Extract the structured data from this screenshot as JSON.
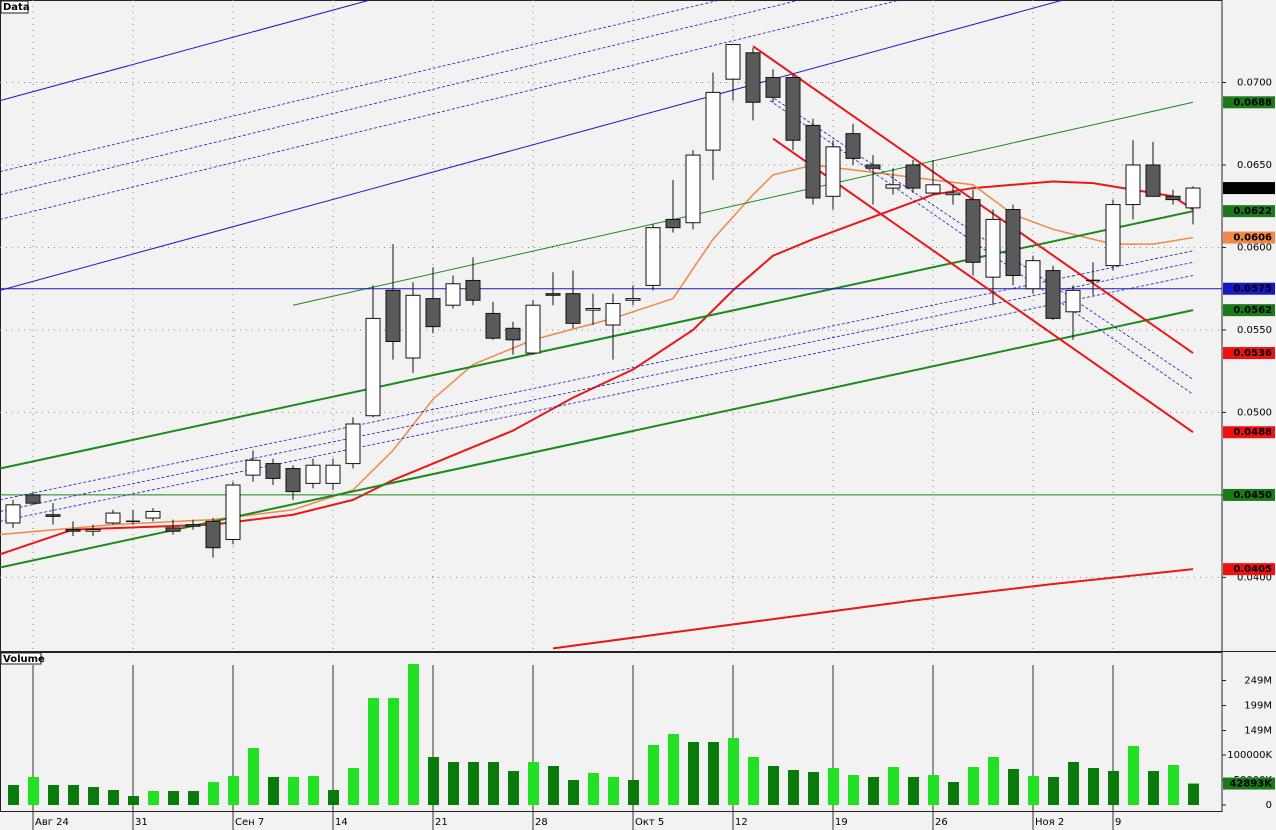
{
  "chart_data": [
    {
      "type": "candlestick",
      "title": "Data",
      "open": [
        0.0433,
        0.045,
        0.0438,
        0.0429,
        0.0428,
        0.0433,
        0.0434,
        0.0436,
        0.043,
        0.0432,
        0.0434,
        0.0423,
        0.0462,
        0.0469,
        0.0466,
        0.0457,
        0.0457,
        0.0469,
        0.0498,
        0.0574,
        0.0533,
        0.0569,
        0.0565,
        0.058,
        0.056,
        0.0551,
        0.0536,
        0.0572,
        0.0572,
        0.0562,
        0.0553,
        0.0568,
        0.0577,
        0.0617,
        0.0615,
        0.0659,
        0.0702,
        0.0718,
        0.0703,
        0.0703,
        0.0674,
        0.0631,
        0.0669,
        0.065,
        0.0636,
        0.065,
        0.0633,
        0.0632,
        0.0629,
        0.0582,
        0.0623,
        0.0575,
        0.0586,
        0.0561,
        0.058,
        0.0589,
        0.0626,
        0.065,
        0.0631,
        0.0624
      ],
      "high": [
        0.0447,
        0.0452,
        0.0445,
        0.0434,
        0.0432,
        0.0441,
        0.0441,
        0.0442,
        0.0435,
        0.0435,
        0.0436,
        0.0458,
        0.0477,
        0.0472,
        0.0468,
        0.0472,
        0.0472,
        0.0497,
        0.0577,
        0.0602,
        0.0579,
        0.0588,
        0.0583,
        0.0594,
        0.0567,
        0.0555,
        0.0568,
        0.0585,
        0.0586,
        0.0572,
        0.0572,
        0.0577,
        0.0614,
        0.0641,
        0.0659,
        0.0706,
        0.0723,
        0.0721,
        0.0708,
        0.0705,
        0.0678,
        0.0665,
        0.0675,
        0.0656,
        0.0648,
        0.0653,
        0.0653,
        0.0638,
        0.0635,
        0.0623,
        0.0626,
        0.0595,
        0.0589,
        0.0577,
        0.0591,
        0.0629,
        0.0665,
        0.0664,
        0.0635,
        0.0637
      ],
      "low": [
        0.043,
        0.0444,
        0.0432,
        0.0425,
        0.0425,
        0.0432,
        0.0432,
        0.0434,
        0.0426,
        0.0429,
        0.0412,
        0.042,
        0.0458,
        0.0456,
        0.0447,
        0.0454,
        0.0453,
        0.0466,
        0.0497,
        0.0532,
        0.0524,
        0.0548,
        0.0563,
        0.0565,
        0.0544,
        0.0535,
        0.0535,
        0.0565,
        0.0551,
        0.0553,
        0.0532,
        0.0565,
        0.0574,
        0.0609,
        0.0611,
        0.0641,
        0.0689,
        0.0677,
        0.0688,
        0.0659,
        0.0626,
        0.0623,
        0.065,
        0.0626,
        0.0632,
        0.0633,
        0.0632,
        0.0626,
        0.0583,
        0.0565,
        0.0577,
        0.0572,
        0.0556,
        0.0544,
        0.0571,
        0.0586,
        0.0617,
        0.0631,
        0.0626,
        0.0614
      ],
      "close": [
        0.0444,
        0.0445,
        0.0437,
        0.0428,
        0.0429,
        0.0439,
        0.0434,
        0.044,
        0.0428,
        0.0431,
        0.0418,
        0.0456,
        0.0471,
        0.046,
        0.0452,
        0.0468,
        0.0468,
        0.0493,
        0.0557,
        0.0543,
        0.0571,
        0.0552,
        0.0578,
        0.0568,
        0.0545,
        0.0544,
        0.0565,
        0.0571,
        0.0554,
        0.0563,
        0.0566,
        0.0569,
        0.0612,
        0.0612,
        0.0656,
        0.0694,
        0.0723,
        0.0688,
        0.0691,
        0.0665,
        0.063,
        0.0661,
        0.0654,
        0.0648,
        0.0638,
        0.0636,
        0.0638,
        0.0633,
        0.0591,
        0.0617,
        0.0583,
        0.0592,
        0.0557,
        0.0574,
        0.058,
        0.0626,
        0.065,
        0.0631,
        0.0629,
        0.0636
      ],
      "up_color": "#ffffff",
      "down_color": "#5a5a5a",
      "ylim": [
        0.0356,
        0.075
      ],
      "yticks": [
        {
          "value": 0.04,
          "label": "0.0400"
        },
        {
          "value": 0.045,
          "label": "0.0450"
        },
        {
          "value": 0.05,
          "label": "0.0500"
        },
        {
          "value": 0.055,
          "label": "0.0550"
        },
        {
          "value": 0.06,
          "label": "0.0600"
        },
        {
          "value": 0.065,
          "label": "0.0650"
        },
        {
          "value": 0.07,
          "label": "0.0700"
        }
      ],
      "grid": true,
      "lines": [
        {
          "color": "#e81818",
          "style": "thick",
          "x": [
            -0.65,
            3,
            10,
            14,
            17,
            19,
            22,
            25,
            28,
            31,
            34,
            36,
            38,
            40,
            42,
            44,
            46,
            48,
            50,
            52,
            54,
            56,
            58,
            59
          ],
          "values": [
            0.0414,
            0.0429,
            0.0432,
            0.0438,
            0.0447,
            0.0459,
            0.0474,
            0.0489,
            0.0509,
            0.0526,
            0.055,
            0.0574,
            0.0595,
            0.0605,
            0.0614,
            0.0623,
            0.0632,
            0.0636,
            0.0638,
            0.064,
            0.0639,
            0.0635,
            0.0631,
            0.0623
          ]
        },
        {
          "color": "#f08848",
          "style": "medium",
          "x": [
            -0.65,
            5,
            10,
            14,
            17,
            19,
            21,
            23,
            26,
            30,
            33,
            35,
            37,
            38,
            40,
            42,
            44,
            46,
            48,
            50,
            52,
            54,
            55,
            57,
            59
          ],
          "values": [
            0.0426,
            0.0432,
            0.0435,
            0.0441,
            0.0453,
            0.0477,
            0.0508,
            0.0529,
            0.0544,
            0.0557,
            0.0569,
            0.0605,
            0.0632,
            0.0644,
            0.065,
            0.0647,
            0.0644,
            0.0641,
            0.0638,
            0.062,
            0.0611,
            0.0605,
            0.0602,
            0.0602,
            0.0606
          ]
        },
        {
          "color": "#e81818",
          "style": "thick",
          "x": [
            27,
            45,
            52,
            59
          ],
          "values": [
            0.0357,
            0.0386,
            0.0396,
            0.0405
          ]
        },
        {
          "color": "#1a8a1a",
          "style": "thick",
          "x": [
            -0.65,
            59
          ],
          "values": [
            0.0466,
            0.0622
          ]
        },
        {
          "color": "#1a8a1a",
          "style": "thick",
          "x": [
            -0.65,
            59
          ],
          "values": [
            0.0406,
            0.0562
          ]
        },
        {
          "color": "#1a8a1a",
          "style": "thin",
          "x": [
            14,
            59
          ],
          "values": [
            0.0565,
            0.0688
          ]
        },
        {
          "color": "#1a8a1a",
          "style": "thin",
          "x": [
            -0.65,
            60.45
          ],
          "values": [
            0.045,
            0.045
          ]
        },
        {
          "color": "#1818c0",
          "style": "thin",
          "x": [
            -0.65,
            60.45
          ],
          "values": [
            0.0575,
            0.0575
          ]
        },
        {
          "color": "#1818c0",
          "style": "thin",
          "x": [
            -0.65,
            17.85
          ],
          "values": [
            0.0689,
            0.075
          ]
        },
        {
          "color": "#1818c0",
          "style": "thin",
          "x": [
            -0.65,
            52.5
          ],
          "values": [
            0.0574,
            0.075
          ]
        },
        {
          "color": "#1818c0",
          "style": "dashed",
          "x": [
            -0.65,
            35.35
          ],
          "values": [
            0.0646,
            0.075
          ]
        },
        {
          "color": "#1818c0",
          "style": "dashed",
          "x": [
            -0.65,
            39.35
          ],
          "values": [
            0.0632,
            0.075
          ]
        },
        {
          "color": "#1818c0",
          "style": "dashed",
          "x": [
            -0.65,
            44.35
          ],
          "values": [
            0.0617,
            0.075
          ]
        },
        {
          "color": "#1818c0",
          "style": "dashed",
          "x": [
            -0.65,
            59
          ],
          "values": [
            0.0447,
            0.0598
          ]
        },
        {
          "color": "#1818c0",
          "style": "dashed",
          "x": [
            -0.65,
            59
          ],
          "values": [
            0.044,
            0.0591
          ]
        },
        {
          "color": "#1818c0",
          "style": "dashed",
          "x": [
            -0.65,
            59
          ],
          "values": [
            0.0434,
            0.0583
          ]
        },
        {
          "color": "#1818c0",
          "style": "dashed",
          "x": [
            37.85,
            59
          ],
          "values": [
            0.0692,
            0.052
          ]
        },
        {
          "color": "#1818c0",
          "style": "dashed",
          "x": [
            37.85,
            59
          ],
          "values": [
            0.0689,
            0.0511
          ]
        },
        {
          "color": "#e81818",
          "style": "thick",
          "x": [
            37,
            59
          ],
          "values": [
            0.0722,
            0.0536
          ]
        },
        {
          "color": "#e81818",
          "style": "thick",
          "x": [
            38,
            59
          ],
          "values": [
            0.0666,
            0.0488
          ]
        }
      ],
      "markers": [
        {
          "value": 0.0688,
          "label": "0.0688",
          "color": "#1a7a1a"
        },
        {
          "value": 0.0636,
          "label": "0.0636",
          "color": "#000000"
        },
        {
          "value": 0.0622,
          "label": "0.0622",
          "color": "#1a7a1a"
        },
        {
          "value": 0.0606,
          "label": "0.0606",
          "color": "#f08848"
        },
        {
          "value": 0.0575,
          "label": "0.0575",
          "color": "#1818c0"
        },
        {
          "value": 0.0562,
          "label": "0.0562",
          "color": "#1a7a1a"
        },
        {
          "value": 0.0536,
          "label": "0.0536",
          "color": "#f01010"
        },
        {
          "value": 0.0488,
          "label": "0.0488",
          "color": "#f01010"
        },
        {
          "value": 0.045,
          "label": "0.0450",
          "color": "#1a7a1a"
        },
        {
          "value": 0.0405,
          "label": "0.0405",
          "color": "#f01010"
        }
      ]
    },
    {
      "type": "bar",
      "title": "Volume",
      "categories": [
        null,
        "Авг 24",
        null,
        null,
        null,
        null,
        "31",
        null,
        null,
        null,
        null,
        "Сен 7",
        null,
        null,
        null,
        null,
        "14",
        null,
        null,
        null,
        null,
        "21",
        null,
        null,
        null,
        null,
        "28",
        null,
        null,
        null,
        null,
        "Окт 5",
        null,
        null,
        null,
        null,
        "12",
        null,
        null,
        null,
        null,
        "19",
        null,
        null,
        null,
        null,
        "26",
        null,
        null,
        null,
        null,
        "Ноя 2",
        null,
        null,
        null,
        "9",
        null,
        null,
        null,
        null
      ],
      "values": [
        40,
        56,
        40,
        40,
        36,
        30,
        18,
        28,
        28,
        28,
        46,
        58,
        114,
        56,
        56,
        58,
        30,
        74,
        214,
        214,
        282,
        96,
        86,
        86,
        86,
        68,
        86,
        78,
        50,
        64,
        56,
        50,
        120,
        142,
        126,
        126,
        134,
        96,
        78,
        70,
        66,
        74,
        60,
        56,
        76,
        56,
        60,
        46,
        76,
        96,
        72,
        58,
        56,
        86,
        74,
        68,
        118,
        68,
        80,
        42.893
      ],
      "colors": [
        "#0a7a0a",
        "#22e022",
        "#0a7a0a",
        "#0a7a0a",
        "#0a7a0a",
        "#0a7a0a",
        "#0a7a0a",
        "#22e022",
        "#0a7a0a",
        "#0a7a0a",
        "#22e022",
        "#22e022",
        "#22e022",
        "#0a7a0a",
        "#22e022",
        "#22e022",
        "#0a7a0a",
        "#22e022",
        "#22e022",
        "#22e022",
        "#22e022",
        "#0a7a0a",
        "#0a7a0a",
        "#0a7a0a",
        "#0a7a0a",
        "#0a7a0a",
        "#22e022",
        "#0a7a0a",
        "#0a7a0a",
        "#22e022",
        "#22e022",
        "#0a7a0a",
        "#22e022",
        "#22e022",
        "#0a7a0a",
        "#0a7a0a",
        "#22e022",
        "#22e022",
        "#0a7a0a",
        "#0a7a0a",
        "#0a7a0a",
        "#22e022",
        "#22e022",
        "#0a7a0a",
        "#22e022",
        "#0a7a0a",
        "#22e022",
        "#0a7a0a",
        "#22e022",
        "#22e022",
        "#0a7a0a",
        "#22e022",
        "#0a7a0a",
        "#0a7a0a",
        "#0a7a0a",
        "#0a7a0a",
        "#22e022",
        "#0a7a0a",
        "#22e022",
        "#0a7a0a"
      ],
      "ylim": [
        0,
        306
      ],
      "yticks": [
        0,
        {
          "value": 50,
          "label": "50000K"
        },
        {
          "value": 100,
          "label": "100000K"
        },
        {
          "value": 149,
          "label": "149M"
        },
        {
          "value": 199,
          "label": "199M"
        },
        {
          "value": 249,
          "label": "249M"
        }
      ],
      "markers": [
        {
          "value": 42.893,
          "label": "42893K",
          "color": "#1a7a1a"
        }
      ]
    }
  ]
}
